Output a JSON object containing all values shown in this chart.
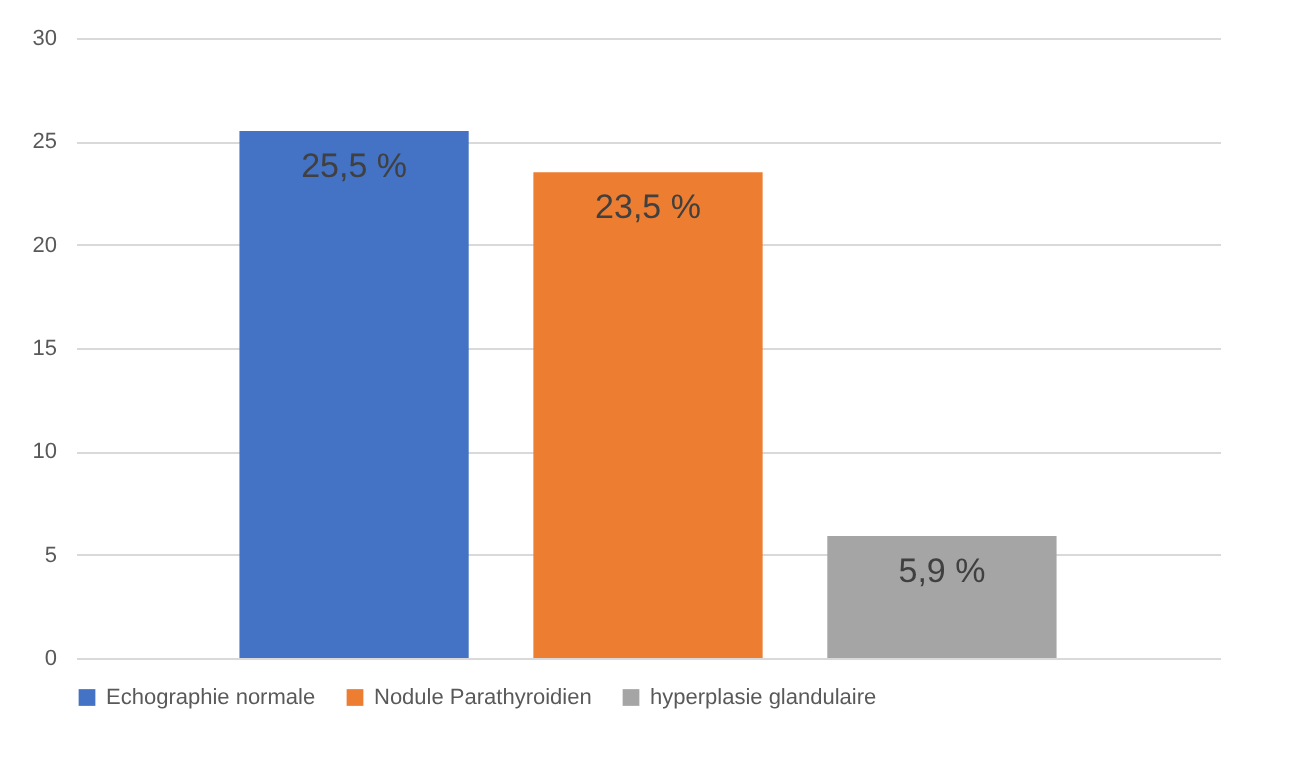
{
  "chart_data": {
    "type": "bar",
    "categories": [
      null
    ],
    "series": [
      {
        "name": "Echographie normale",
        "color": "#4472c4",
        "values": [
          25.5
        ],
        "value_labels": [
          "25,5 %"
        ]
      },
      {
        "name": "Nodule Parathyroidien",
        "color": "#ed7d31",
        "values": [
          23.5
        ],
        "value_labels": [
          "23,5 %"
        ]
      },
      {
        "name": "hyperplasie glandulaire",
        "color": "#a5a5a5",
        "values": [
          5.9
        ],
        "value_labels": [
          "5,9 %"
        ]
      }
    ],
    "ylim": [
      0,
      30
    ],
    "yticks": [
      0,
      5,
      10,
      15,
      20,
      25,
      30
    ],
    "grid": "y",
    "legend": "bottom"
  }
}
